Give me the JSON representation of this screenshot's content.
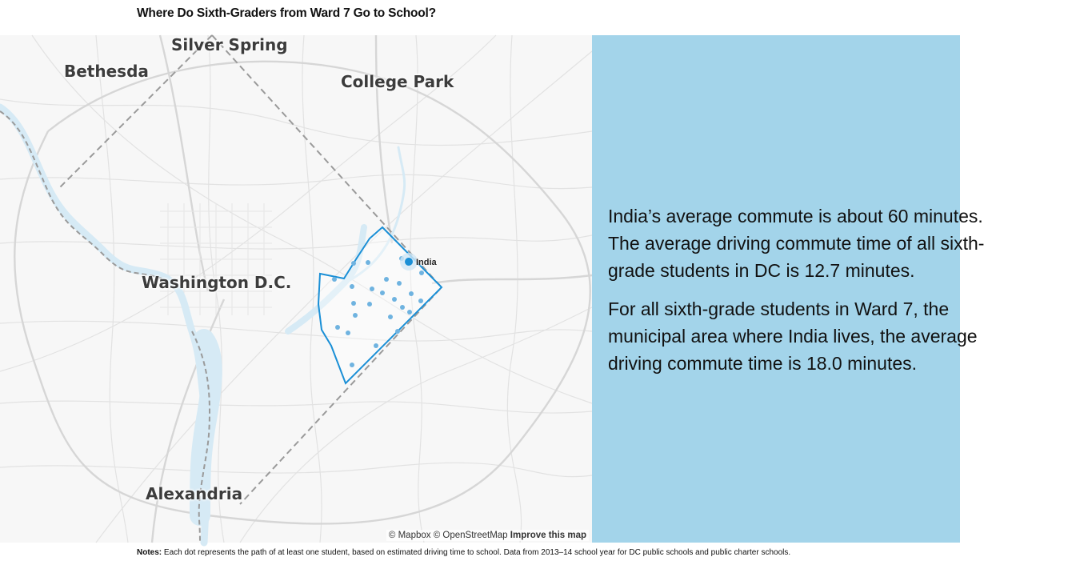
{
  "title": "Where Do Sixth-Graders from Ward 7 Go to School?",
  "map": {
    "places": {
      "silver_spring": "Silver Spring",
      "bethesda": "Bethesda",
      "college_park": "College Park",
      "washington": "Washington D.C.",
      "alexandria": "Alexandria"
    },
    "student_label": "India",
    "attribution": {
      "mapbox": "© Mapbox",
      "osm": "© OpenStreetMap",
      "improve": "Improve this map"
    },
    "colors": {
      "ward_outline": "#1a8fd6",
      "student_dot": "#1a8fd6",
      "school_dot": "#6fb3e0",
      "water": "#d6eaf5",
      "dc_boundary": "#9a9a9a"
    }
  },
  "panel": {
    "paragraph1_line1": "India’s average commute is about 60 minutes.",
    "paragraph1_line2": "The average driving commute time of all sixth-",
    "paragraph1_line3": "grade students in DC is 12.7 minutes.",
    "paragraph2_line1": "For all sixth-grade students in Ward 7, the",
    "paragraph2_line2": "municipal area where India lives, the average",
    "paragraph2_line3": "driving commute time is 18.0 minutes.",
    "background": "#a3d4ea"
  },
  "notes": {
    "label": "Notes:",
    "text": "Each dot represents the path of at least one student, based on estimated driving time to school. Data from 2013–14 school year for DC public schools and public charter schools."
  }
}
